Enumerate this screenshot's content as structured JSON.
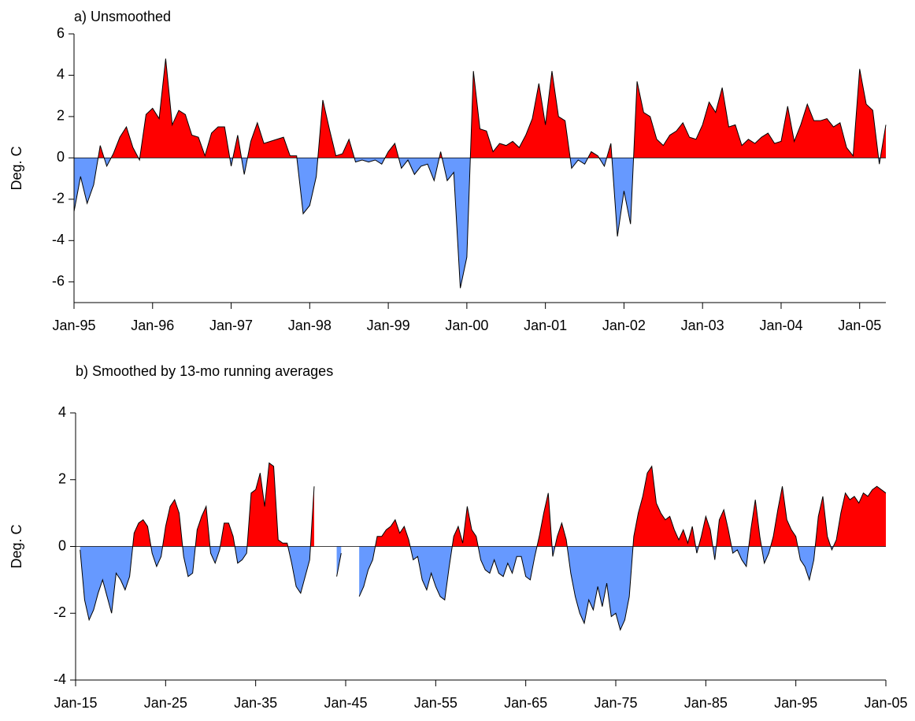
{
  "chart_data": [
    {
      "type": "area",
      "title": "a) Unsmoothed",
      "ylabel": "Deg. C",
      "color_positive": "#ff0000",
      "color_negative": "#6699ff",
      "xlim": [
        "1995-01",
        "2005-05"
      ],
      "ylim": [
        -7,
        6
      ],
      "yticks": [
        -6,
        -4,
        -2,
        0,
        2,
        4,
        6
      ],
      "xticks": [
        {
          "value": "1995-01",
          "label": "Jan-95"
        },
        {
          "value": "1996-01",
          "label": "Jan-96"
        },
        {
          "value": "1997-01",
          "label": "Jan-97"
        },
        {
          "value": "1998-01",
          "label": "Jan-98"
        },
        {
          "value": "1999-01",
          "label": "Jan-99"
        },
        {
          "value": "2000-01",
          "label": "Jan-00"
        },
        {
          "value": "2001-01",
          "label": "Jan-01"
        },
        {
          "value": "2002-01",
          "label": "Jan-02"
        },
        {
          "value": "2003-01",
          "label": "Jan-03"
        },
        {
          "value": "2004-01",
          "label": "Jan-04"
        },
        {
          "value": "2005-01",
          "label": "Jan-05"
        }
      ],
      "x": [
        "1995-01",
        "1995-02",
        "1995-03",
        "1995-04",
        "1995-05",
        "1995-06",
        "1995-07",
        "1995-08",
        "1995-09",
        "1995-10",
        "1995-11",
        "1995-12",
        "1996-01",
        "1996-02",
        "1996-03",
        "1996-04",
        "1996-05",
        "1996-06",
        "1996-07",
        "1996-08",
        "1996-09",
        "1996-10",
        "1996-11",
        "1996-12",
        "1997-01",
        "1997-02",
        "1997-03",
        "1997-04",
        "1997-05",
        "1997-06",
        "1997-07",
        "1997-08",
        "1997-09",
        "1997-10",
        "1997-11",
        "1997-12",
        "1998-01",
        "1998-02",
        "1998-03",
        "1998-04",
        "1998-05",
        "1998-06",
        "1998-07",
        "1998-08",
        "1998-09",
        "1998-10",
        "1998-11",
        "1998-12",
        "1999-01",
        "1999-02",
        "1999-03",
        "1999-04",
        "1999-05",
        "1999-06",
        "1999-07",
        "1999-08",
        "1999-09",
        "1999-10",
        "1999-11",
        "1999-12",
        "2000-01",
        "2000-02",
        "2000-03",
        "2000-04",
        "2000-05",
        "2000-06",
        "2000-07",
        "2000-08",
        "2000-09",
        "2000-10",
        "2000-11",
        "2000-12",
        "2001-01",
        "2001-02",
        "2001-03",
        "2001-04",
        "2001-05",
        "2001-06",
        "2001-07",
        "2001-08",
        "2001-09",
        "2001-10",
        "2001-11",
        "2001-12",
        "2002-01",
        "2002-02",
        "2002-03",
        "2002-04",
        "2002-05",
        "2002-06",
        "2002-07",
        "2002-08",
        "2002-09",
        "2002-10",
        "2002-11",
        "2002-12",
        "2003-01",
        "2003-02",
        "2003-03",
        "2003-04",
        "2003-05",
        "2003-06",
        "2003-07",
        "2003-08",
        "2003-09",
        "2003-10",
        "2003-11",
        "2003-12",
        "2004-01",
        "2004-02",
        "2004-03",
        "2004-04",
        "2004-05",
        "2004-06",
        "2004-07",
        "2004-08",
        "2004-09",
        "2004-10",
        "2004-11",
        "2004-12",
        "2005-01",
        "2005-02",
        "2005-03",
        "2005-04",
        "2005-05"
      ],
      "values": [
        -2.6,
        -0.9,
        -2.2,
        -1.3,
        0.6,
        -0.4,
        0.2,
        1.0,
        1.5,
        0.5,
        -0.1,
        2.1,
        2.4,
        1.9,
        4.8,
        1.6,
        2.3,
        2.1,
        1.1,
        1.0,
        0.1,
        1.2,
        1.5,
        1.5,
        -0.4,
        1.1,
        -0.8,
        0.8,
        1.7,
        0.7,
        0.8,
        0.9,
        1.0,
        0.1,
        0.1,
        -2.7,
        -2.3,
        -0.9,
        2.8,
        1.4,
        0.1,
        0.2,
        0.9,
        -0.2,
        -0.1,
        -0.2,
        -0.1,
        -0.3,
        0.3,
        0.7,
        -0.5,
        -0.1,
        -0.8,
        -0.4,
        -0.3,
        -1.1,
        0.3,
        -1.1,
        -0.7,
        -6.3,
        -4.8,
        4.2,
        1.4,
        1.3,
        0.3,
        0.7,
        0.6,
        0.8,
        0.5,
        1.1,
        1.9,
        3.6,
        1.6,
        4.2,
        2.0,
        1.8,
        -0.5,
        -0.1,
        -0.3,
        0.3,
        0.1,
        -0.4,
        0.7,
        -3.8,
        -1.6,
        -3.2,
        3.7,
        2.2,
        2.0,
        0.9,
        0.6,
        1.1,
        1.3,
        1.7,
        1.0,
        0.9,
        1.6,
        2.7,
        2.2,
        3.4,
        1.5,
        1.6,
        0.6,
        0.9,
        0.7,
        1.0,
        1.2,
        0.7,
        0.8,
        2.5,
        0.8,
        1.6,
        2.6,
        1.8,
        1.8,
        1.9,
        1.5,
        1.7,
        0.5,
        0.1,
        4.3,
        2.6,
        2.3,
        -0.3,
        1.6
      ]
    },
    {
      "type": "area",
      "title": "b) Smoothed by 13-mo running averages",
      "ylabel": "Deg. C",
      "color_positive": "#ff0000",
      "color_negative": "#6699ff",
      "xlim": [
        "1915-01",
        "2005-01"
      ],
      "ylim": [
        -4,
        4
      ],
      "yticks": [
        -4,
        -2,
        0,
        2,
        4
      ],
      "xticks": [
        {
          "value": "1915-01",
          "label": "Jan-15"
        },
        {
          "value": "1925-01",
          "label": "Jan-25"
        },
        {
          "value": "1935-01",
          "label": "Jan-35"
        },
        {
          "value": "1945-01",
          "label": "Jan-45"
        },
        {
          "value": "1955-01",
          "label": "Jan-55"
        },
        {
          "value": "1965-01",
          "label": "Jan-65"
        },
        {
          "value": "1975-01",
          "label": "Jan-75"
        },
        {
          "value": "1985-01",
          "label": "Jan-85"
        },
        {
          "value": "1995-01",
          "label": "Jan-95"
        },
        {
          "value": "2005-01",
          "label": "Jan-05"
        }
      ],
      "x": [
        "1915-07",
        "1916-01",
        "1916-07",
        "1917-01",
        "1917-07",
        "1918-01",
        "1918-07",
        "1919-01",
        "1919-07",
        "1920-01",
        "1920-07",
        "1921-01",
        "1921-07",
        "1922-01",
        "1922-07",
        "1923-01",
        "1923-07",
        "1924-01",
        "1924-07",
        "1925-01",
        "1925-07",
        "1926-01",
        "1926-07",
        "1927-01",
        "1927-07",
        "1928-01",
        "1928-07",
        "1929-01",
        "1929-07",
        "1930-01",
        "1930-07",
        "1931-01",
        "1931-07",
        "1932-01",
        "1932-07",
        "1933-01",
        "1933-07",
        "1934-01",
        "1934-07",
        "1935-01",
        "1935-07",
        "1936-01",
        "1936-07",
        "1937-01",
        "1937-07",
        "1938-01",
        "1938-07",
        "1939-01",
        "1939-07",
        "1940-01",
        "1940-07",
        "1941-01",
        "1941-07",
        "1942-01",
        "1942-07",
        "1943-01",
        "1943-07",
        "1944-01",
        "1944-07",
        "1945-01",
        "1945-07",
        "1946-01",
        "1946-07",
        "1947-01",
        "1947-07",
        "1948-01",
        "1948-07",
        "1949-01",
        "1949-07",
        "1950-01",
        "1950-07",
        "1951-01",
        "1951-07",
        "1952-01",
        "1952-07",
        "1953-01",
        "1953-07",
        "1954-01",
        "1954-07",
        "1955-01",
        "1955-07",
        "1956-01",
        "1956-07",
        "1957-01",
        "1957-07",
        "1958-01",
        "1958-07",
        "1959-01",
        "1959-07",
        "1960-01",
        "1960-07",
        "1961-01",
        "1961-07",
        "1962-01",
        "1962-07",
        "1963-01",
        "1963-07",
        "1964-01",
        "1964-07",
        "1965-01",
        "1965-07",
        "1966-01",
        "1966-07",
        "1967-01",
        "1967-07",
        "1968-01",
        "1968-07",
        "1969-01",
        "1969-07",
        "1970-01",
        "1970-07",
        "1971-01",
        "1971-07",
        "1972-01",
        "1972-07",
        "1973-01",
        "1973-07",
        "1974-01",
        "1974-07",
        "1975-01",
        "1975-07",
        "1976-01",
        "1976-07",
        "1977-01",
        "1977-07",
        "1978-01",
        "1978-07",
        "1979-01",
        "1979-07",
        "1980-01",
        "1980-07",
        "1981-01",
        "1981-07",
        "1982-01",
        "1982-07",
        "1983-01",
        "1983-07",
        "1984-01",
        "1984-07",
        "1985-01",
        "1985-07",
        "1986-01",
        "1986-07",
        "1987-01",
        "1987-07",
        "1988-01",
        "1988-07",
        "1989-01",
        "1989-07",
        "1990-01",
        "1990-07",
        "1991-01",
        "1991-07",
        "1992-01",
        "1992-07",
        "1993-01",
        "1993-07",
        "1994-01",
        "1994-07",
        "1995-01",
        "1995-07",
        "1996-01",
        "1996-07",
        "1997-01",
        "1997-07",
        "1998-01",
        "1998-07",
        "1999-01",
        "1999-07",
        "2000-01",
        "2000-07",
        "2001-01",
        "2001-07",
        "2002-01",
        "2002-07",
        "2003-01",
        "2003-07",
        "2004-01",
        "2004-07",
        "2005-01"
      ],
      "values": [
        -0.1,
        -1.6,
        -2.2,
        -1.9,
        -1.4,
        -1.0,
        -1.5,
        -2.0,
        -0.8,
        -1.0,
        -1.3,
        -0.9,
        0.4,
        0.7,
        0.8,
        0.6,
        -0.2,
        -0.6,
        -0.3,
        0.6,
        1.2,
        1.4,
        1.0,
        -0.3,
        -0.9,
        -0.8,
        0.5,
        0.9,
        1.2,
        -0.2,
        -0.5,
        -0.1,
        0.7,
        0.7,
        0.3,
        -0.5,
        -0.4,
        -0.2,
        1.6,
        1.7,
        2.2,
        1.2,
        2.5,
        2.4,
        0.2,
        0.1,
        0.1,
        -0.5,
        -1.2,
        -1.4,
        -0.9,
        -0.4,
        1.8,
        null,
        null,
        null,
        null,
        -0.9,
        -0.2,
        null,
        null,
        null,
        -1.5,
        -1.2,
        -0.7,
        -0.4,
        0.3,
        0.3,
        0.5,
        0.6,
        0.8,
        0.4,
        0.6,
        0.2,
        -0.4,
        -0.3,
        -1.0,
        -1.3,
        -0.8,
        -1.2,
        -1.5,
        -1.6,
        -0.6,
        0.3,
        0.6,
        0.1,
        1.2,
        0.5,
        0.3,
        -0.4,
        -0.7,
        -0.8,
        -0.4,
        -0.8,
        -0.9,
        -0.5,
        -0.8,
        -0.3,
        -0.3,
        -0.9,
        -1.0,
        -0.3,
        0.3,
        1.0,
        1.6,
        -0.3,
        0.3,
        0.7,
        0.2,
        -0.8,
        -1.5,
        -2.0,
        -2.3,
        -1.6,
        -1.9,
        -1.2,
        -1.8,
        -1.1,
        -2.1,
        -2.0,
        -2.5,
        -2.2,
        -1.5,
        0.3,
        1.0,
        1.5,
        2.2,
        2.4,
        1.3,
        1.0,
        0.8,
        0.9,
        0.5,
        0.2,
        0.5,
        0.1,
        0.6,
        -0.2,
        0.3,
        0.9,
        0.5,
        -0.4,
        0.8,
        1.1,
        0.5,
        -0.2,
        -0.1,
        -0.4,
        -0.6,
        0.5,
        1.4,
        0.3,
        -0.5,
        -0.2,
        0.3,
        1.1,
        1.8,
        0.8,
        0.5,
        0.3,
        -0.4,
        -0.6,
        -1.0,
        -0.4,
        0.9,
        1.5,
        0.3,
        -0.1,
        0.2,
        1.0,
        1.6,
        1.4,
        1.5,
        1.3,
        1.6,
        1.5,
        1.7,
        1.8,
        1.7,
        1.6
      ]
    }
  ]
}
